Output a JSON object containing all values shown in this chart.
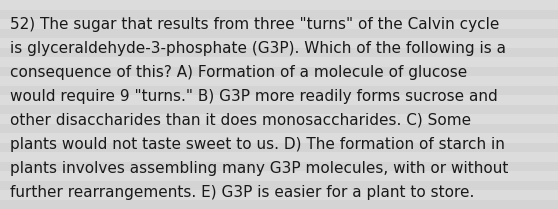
{
  "text": "52) The sugar that results from three \"turns\" of the Calvin cycle is glyceraldehyde-3-phosphate (G3P). Which of the following is a consequence of this? A) Formation of a molecule of glucose would require 9 \"turns.\" B) G3P more readily forms sucrose and other disaccharides than it does monosaccharides. C) Some plants would not taste sweet to us. D) The formation of starch in plants involves assembling many G3P molecules, with or without further rearrangements. E) G3P is easier for a plant to store.",
  "lines": [
    "52) The sugar that results from three \"turns\" of the Calvin cycle",
    "is glyceraldehyde-3-phosphate (G3P). Which of the following is a",
    "consequence of this? A) Formation of a molecule of glucose",
    "would require 9 \"turns.\" B) G3P more readily forms sucrose and",
    "other disaccharides than it does monosaccharides. C) Some",
    "plants would not taste sweet to us. D) The formation of starch in",
    "plants involves assembling many G3P molecules, with or without",
    "further rearrangements. E) G3P is easier for a plant to store."
  ],
  "background_color_light": "#dcdcdc",
  "background_color_dark": "#c8c8c8",
  "stripe_color_light": "#e0e0e0",
  "stripe_color_dark": "#d0d0d0",
  "text_color": "#1a1a1a",
  "font_size": 11.0,
  "figwidth": 5.58,
  "figheight": 2.09,
  "dpi": 100
}
